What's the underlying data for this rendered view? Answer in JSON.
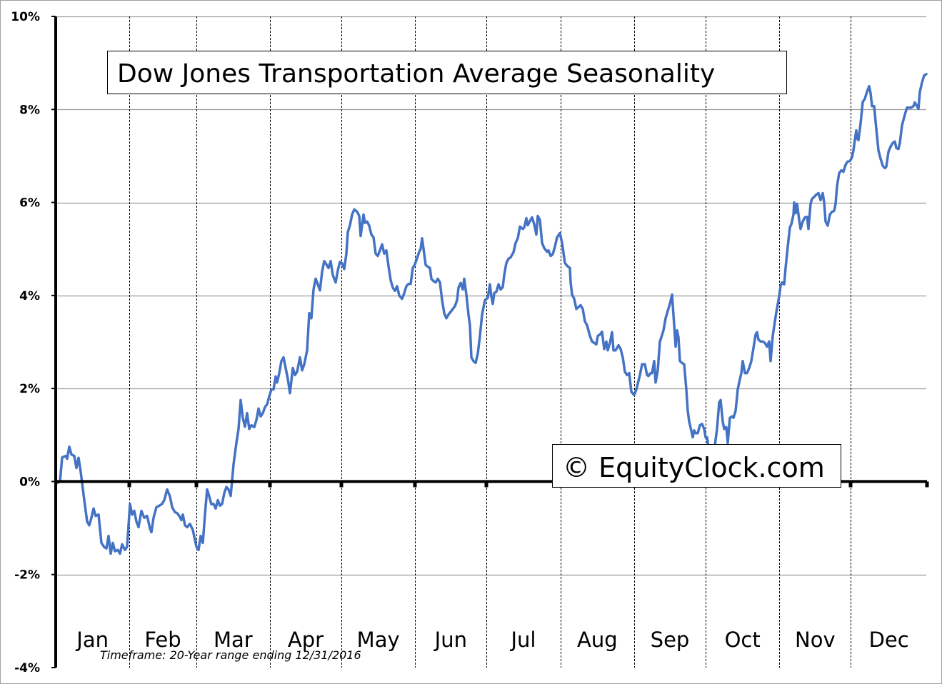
{
  "chart_data": {
    "type": "line",
    "title": "Dow Jones Transportation Average Seasonality",
    "watermark": "© EquityClock.com",
    "footnote": "Timeframe: 20-Year range ending 12/31/2016",
    "xlabel": "",
    "ylabel": "",
    "x_unit": "day of year",
    "xlim": [
      0,
      366
    ],
    "ylim": [
      -4,
      10
    ],
    "y_ticks": [
      10,
      8,
      6,
      4,
      2,
      0,
      -2,
      -4
    ],
    "y_tick_labels": [
      "10%",
      "8%",
      "6%",
      "4%",
      "2%",
      "0%",
      "-2%",
      "-4%"
    ],
    "month_labels": [
      "Jan",
      "Feb",
      "Mar",
      "Apr",
      "May",
      "Jun",
      "Jul",
      "Aug",
      "Sep",
      "Oct",
      "Nov",
      "Dec"
    ],
    "month_starts": [
      0,
      31,
      59,
      90,
      120,
      151,
      181,
      212,
      243,
      273,
      304,
      334,
      366
    ],
    "grid": {
      "horizontal": true,
      "vertical": "dotted at month boundaries"
    },
    "colors": {
      "line": "#4472C4",
      "grid": "#9a9a9a",
      "zero_line": "#000000"
    },
    "series": [
      {
        "x": [
          0.6,
          1.8,
          2.7,
          4.2,
          4.8,
          5.7,
          6.6,
          7.8,
          8.7,
          9.6,
          10.5,
          12,
          13.2,
          14.1,
          15,
          15.9,
          16.8,
          18,
          19.2,
          20.4,
          21.3,
          22.2,
          23.1,
          24,
          24.9,
          26.1,
          27,
          27.9,
          29.1,
          30,
          31.2,
          32.1,
          33,
          33.9,
          34.8,
          36,
          37.2,
          38.4,
          39.6,
          40.2,
          41.1,
          42.3,
          43.5,
          44.7,
          45.6,
          46.8,
          48,
          48.9,
          50.1,
          51,
          51.9,
          52.8,
          53.4,
          54.3,
          55.2,
          56.4,
          57.6,
          59.1,
          60,
          60.9,
          61.8,
          62.7,
          63.6,
          64.5,
          65.4,
          66.3,
          67.2,
          68.1,
          69,
          69.9,
          70.8,
          71.7,
          72.6,
          73.5,
          74.7,
          75.9,
          76.8,
          77.7,
          78.6,
          79.5,
          80.4,
          81.3,
          82.2,
          83.4,
          84.3,
          85.2,
          86.1,
          87,
          87.9,
          88.8,
          89.7,
          90.6,
          91.5,
          92.4,
          93,
          93.9,
          94.8,
          95.7,
          96.6,
          97.5,
          98.4,
          99.6,
          100.5,
          101.4,
          102.6,
          103.5,
          104.4,
          105.6,
          106.5,
          107.4,
          108.3,
          109.2,
          110.1,
          111,
          111.9,
          112.8,
          113.7,
          114.6,
          115.5,
          116.4,
          117.6,
          118.5,
          119.4,
          120.3,
          121.2,
          122.1,
          122.7,
          123.6,
          124.5,
          125.4,
          126.6,
          127.5,
          128.1,
          128.7,
          129.3,
          129.9,
          130.8,
          131.7,
          132.6,
          133.5,
          134.4,
          135.3,
          136.2,
          137.1,
          138,
          138.9,
          139.8,
          140.7,
          141.6,
          142.5,
          143.4,
          144.3,
          145.5,
          146.4,
          147.3,
          148.2,
          149.1,
          150,
          150.9,
          152.1,
          152.7,
          153.3,
          153.9,
          154.8,
          155.4,
          156,
          157.2,
          157.8,
          158.7,
          159.6,
          160.5,
          161.4,
          162.3,
          163.2,
          164.1,
          165,
          166.2,
          167.7,
          168.6,
          169.2,
          170.1,
          171,
          171.6,
          172.5,
          173.4,
          174,
          174.6,
          175.5,
          176.4,
          177.3,
          178.2,
          179.1,
          180.3,
          181.5,
          182.4,
          183,
          183.6,
          184.2,
          185.1,
          186,
          186.9,
          187.8,
          188.4,
          189.3,
          190.2,
          191.1,
          192.3,
          193.2,
          194.1,
          195,
          196.2,
          196.8,
          197.7,
          198.3,
          199.2,
          200.1,
          201,
          201.9,
          202.5,
          203.4,
          204.3,
          205.2,
          206.4,
          207,
          207.9,
          208.8,
          209.7,
          210.6,
          211.8,
          212.7,
          213.9,
          214.8,
          216,
          216.3,
          216.9,
          217.8,
          218.7,
          219.6,
          220.5,
          221.4,
          222.3,
          223.2,
          224.4,
          225.3,
          226.2,
          227.1,
          227.7,
          228.6,
          229.5,
          230.4,
          231.3,
          231.9,
          232.8,
          233.7,
          234.3,
          235.2,
          236.4,
          237.3,
          238.2,
          239.1,
          240,
          240.9,
          241.8,
          243,
          243.9,
          244.5,
          245.4,
          246.3,
          247.5,
          248.4,
          249,
          249.9,
          250.5,
          251.4,
          252,
          252.9,
          253.8,
          254.4,
          255.3,
          256.2,
          257.1,
          258,
          258.9,
          259.8,
          260.4,
          261,
          261.6,
          262.2,
          263.1,
          264,
          264.9,
          265.5,
          266.1,
          267,
          267.6,
          268.2,
          268.8,
          269.7,
          270.6,
          271.5,
          272.4,
          273,
          273.6,
          274.2,
          275.1,
          275.7,
          276.6,
          277.8,
          278.7,
          279.3,
          280.2,
          280.8,
          281.7,
          282.3,
          283.2,
          284.1,
          284.7,
          285.6,
          286.5,
          287.1,
          288,
          288.6,
          289.5,
          290.4,
          291.3,
          292.2,
          293.1,
          294,
          294.6,
          295.2,
          296.1,
          297,
          297.9,
          298.8,
          299.7,
          300.3,
          301.2,
          302.1,
          302.7,
          303.9,
          304.5,
          305.1,
          306,
          306.6,
          307.5,
          308.4,
          309,
          309.9,
          310.2,
          310.8,
          311.4,
          312.3,
          312.9,
          313.8,
          314.7,
          315.6,
          316.2,
          317.1,
          317.7,
          318.6,
          319.5,
          320.4,
          321.3,
          322.2,
          322.8,
          323.4,
          324.3,
          325.2,
          326.1,
          327,
          327.6,
          328.2,
          329.1,
          330,
          330.9,
          331.8,
          332.7,
          333.6,
          334.5,
          335.1,
          335.7,
          336.3,
          336.6,
          337.2,
          338.1,
          339,
          339.9,
          340.8,
          341.7,
          342.3,
          342.9,
          343.8,
          344.7,
          345.6,
          346.5,
          347.4,
          348.3,
          348.9,
          349.8,
          350.7,
          351.6,
          352.5,
          353.1,
          354,
          354.6,
          355.5,
          356.7,
          357.6,
          358.5,
          359.4,
          360.3,
          360.9,
          361.8,
          362.4,
          363,
          363.9,
          364.8,
          365.7
        ],
        "y": [
          -0.03,
          0,
          0.52,
          0.55,
          0.49,
          0.75,
          0.58,
          0.55,
          0.29,
          0.51,
          0.21,
          -0.4,
          -0.86,
          -0.94,
          -0.78,
          -0.58,
          -0.74,
          -0.71,
          -1.32,
          -1.41,
          -1.44,
          -1.17,
          -1.55,
          -1.32,
          -1.5,
          -1.47,
          -1.55,
          -1.35,
          -1.47,
          -1.4,
          -0.48,
          -0.71,
          -0.63,
          -0.86,
          -0.98,
          -0.63,
          -0.78,
          -0.74,
          -1.01,
          -1.09,
          -0.78,
          -0.55,
          -0.52,
          -0.48,
          -0.4,
          -0.17,
          -0.32,
          -0.55,
          -0.66,
          -0.68,
          -0.74,
          -0.83,
          -0.71,
          -0.94,
          -0.98,
          -0.91,
          -1.04,
          -1.4,
          -1.47,
          -1.17,
          -1.32,
          -0.71,
          -0.17,
          -0.32,
          -0.49,
          -0.48,
          -0.58,
          -0.4,
          -0.52,
          -0.48,
          -0.25,
          -0.12,
          -0.17,
          -0.31,
          0.37,
          0.83,
          1.13,
          1.75,
          1.37,
          1.18,
          1.47,
          1.13,
          1.21,
          1.17,
          1.32,
          1.57,
          1.4,
          1.47,
          1.6,
          1.66,
          1.83,
          1.98,
          1.98,
          2.26,
          2.13,
          2.33,
          2.59,
          2.67,
          2.44,
          2.21,
          1.9,
          2.44,
          2.29,
          2.36,
          2.67,
          2.39,
          2.52,
          2.82,
          3.62,
          3.51,
          4.13,
          4.36,
          4.24,
          4.11,
          4.51,
          4.74,
          4.67,
          4.59,
          4.74,
          4.44,
          4.28,
          4.54,
          4.72,
          4.69,
          4.57,
          4.9,
          5.36,
          5.51,
          5.74,
          5.85,
          5.8,
          5.71,
          5.28,
          5.51,
          5.74,
          5.56,
          5.59,
          5.5,
          5.31,
          5.25,
          4.9,
          4.85,
          4.97,
          5.1,
          4.9,
          4.97,
          4.63,
          4.33,
          4.17,
          4.1,
          4.2,
          4.0,
          3.93,
          4.05,
          4.2,
          4.25,
          4.25,
          4.59,
          4.67,
          4.85,
          4.94,
          5.0,
          5.23,
          4.89,
          4.66,
          4.63,
          4.59,
          4.36,
          4.31,
          4.28,
          4.36,
          4.28,
          3.9,
          3.62,
          3.51,
          3.59,
          3.67,
          3.77,
          3.9,
          4.17,
          4.27,
          4.13,
          4.36,
          4.02,
          3.59,
          3.36,
          2.67,
          2.59,
          2.55,
          2.75,
          3.13,
          3.59,
          3.9,
          3.95,
          4.24,
          3.98,
          3.82,
          4.05,
          4.08,
          4.24,
          4.13,
          4.18,
          4.44,
          4.7,
          4.79,
          4.82,
          4.93,
          5.13,
          5.23,
          5.48,
          5.43,
          5.46,
          5.66,
          5.51,
          5.6,
          5.68,
          5.53,
          5.31,
          5.71,
          5.62,
          5.13,
          5.02,
          4.94,
          4.97,
          4.85,
          4.89,
          5.05,
          5.25,
          5.34,
          5.13,
          4.7,
          4.64,
          4.59,
          4.28,
          4.02,
          3.93,
          3.71,
          3.75,
          3.79,
          3.71,
          3.44,
          3.36,
          3.13,
          3.01,
          2.98,
          2.95,
          3.13,
          3.16,
          3.22,
          2.85,
          3.01,
          2.82,
          2.98,
          3.21,
          2.82,
          2.82,
          2.93,
          2.85,
          2.67,
          2.36,
          2.29,
          2.33,
          1.93,
          1.86,
          1.98,
          2.1,
          2.29,
          2.52,
          2.52,
          2.29,
          2.27,
          2.33,
          2.33,
          2.59,
          2.13,
          2.39,
          3.01,
          3.1,
          3.25,
          3.51,
          3.67,
          3.82,
          4.02,
          3.36,
          2.9,
          3.25,
          3.1,
          2.59,
          2.55,
          2.52,
          1.98,
          1.52,
          1.29,
          1.09,
          0.95,
          1.1,
          1.04,
          1.04,
          1.21,
          1.24,
          1.13,
          0.95,
          0.95,
          0.75,
          0.52,
          0.37,
          0.67,
          1.13,
          1.7,
          1.75,
          1.29,
          1.13,
          1.17,
          0.83,
          1.37,
          1.4,
          1.37,
          1.52,
          1.98,
          2.13,
          2.33,
          2.59,
          2.33,
          2.33,
          2.44,
          2.59,
          2.87,
          3.16,
          3.21,
          3.05,
          3.01,
          3.01,
          2.98,
          2.9,
          3.01,
          2.59,
          3.13,
          3.44,
          3.64,
          3.98,
          4.21,
          4.28,
          4.24,
          4.59,
          5.05,
          5.46,
          5.53,
          5.74,
          6.0,
          5.77,
          5.97,
          5.63,
          5.43,
          5.59,
          5.68,
          5.69,
          5.43,
          5.97,
          6.08,
          6.12,
          6.17,
          6.2,
          6.05,
          6.2,
          6.0,
          5.59,
          5.5,
          5.74,
          5.8,
          5.82,
          5.97,
          6.35,
          6.63,
          6.69,
          6.66,
          6.81,
          6.88,
          6.89,
          6.97,
          7.12,
          7.35,
          7.55,
          7.38,
          7.34,
          7.7,
          8.16,
          8.23,
          8.38,
          8.5,
          8.35,
          8.07,
          8.07,
          7.58,
          7.12,
          6.94,
          6.79,
          6.74,
          6.77,
          7.09,
          7.2,
          7.28,
          7.31,
          7.17,
          7.15,
          7.28,
          7.66,
          7.89,
          8.04,
          8.04,
          8.04,
          8.07,
          8.15,
          8.07,
          8.01,
          8.38,
          8.58,
          8.73,
          8.76
        ]
      }
    ]
  }
}
